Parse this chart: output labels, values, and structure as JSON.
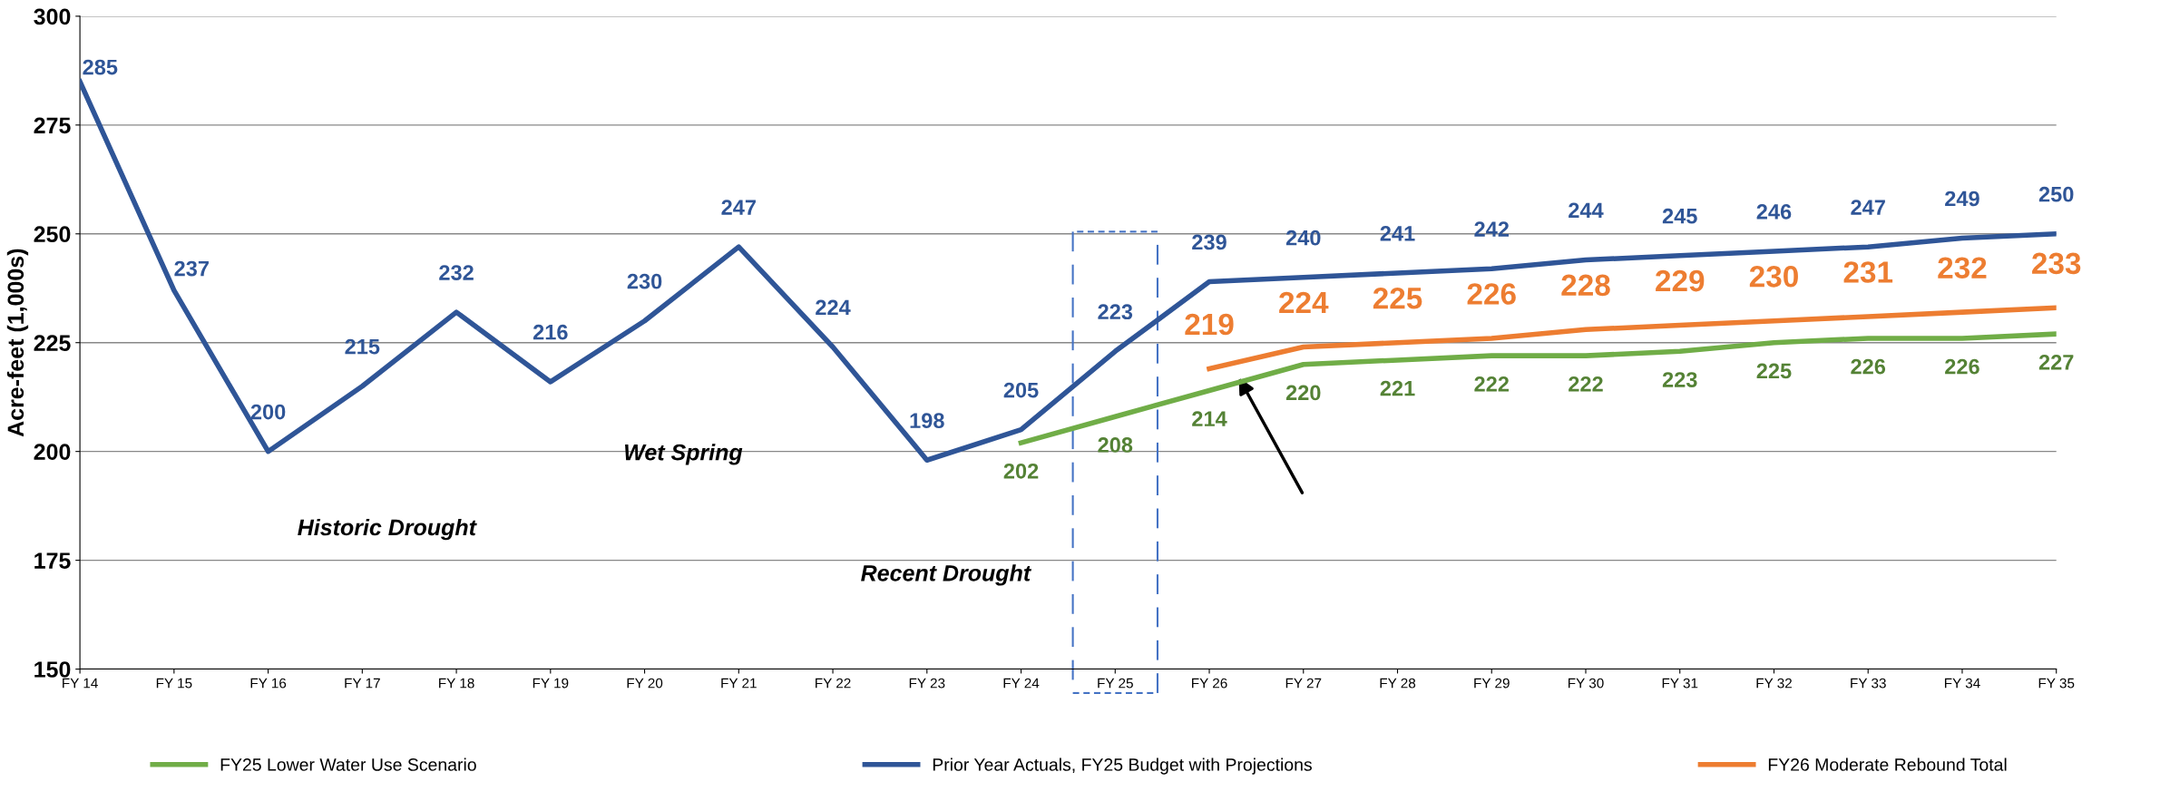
{
  "chart_data": {
    "type": "line",
    "categories": [
      "FY 14",
      "FY 15",
      "FY 16",
      "FY 17",
      "FY 18",
      "FY 19",
      "FY 20",
      "FY 21",
      "FY 22",
      "FY 23",
      "FY 24",
      "FY 25",
      "FY 26",
      "FY 27",
      "FY 28",
      "FY 29",
      "FY 30",
      "FY 31",
      "FY 32",
      "FY 33",
      "FY 34",
      "FY 35"
    ],
    "series": [
      {
        "name": "FY25 Lower Water Use Scenario",
        "color": "#70ad47",
        "values": [
          null,
          null,
          null,
          null,
          null,
          null,
          null,
          null,
          null,
          null,
          202,
          208,
          214,
          220,
          221,
          222,
          222,
          223,
          225,
          226,
          226,
          227
        ]
      },
      {
        "name": "Prior Year Actuals, FY25 Budget with Projections",
        "color": "#2f5597",
        "values": [
          285,
          237,
          200,
          215,
          232,
          216,
          230,
          247,
          224,
          198,
          205,
          223,
          239,
          240,
          241,
          242,
          244,
          245,
          246,
          247,
          249,
          250
        ]
      },
      {
        "name": "FY26 Moderate Rebound Total",
        "color": "#ed7d31",
        "values": [
          null,
          null,
          null,
          null,
          null,
          null,
          null,
          null,
          null,
          null,
          null,
          null,
          219,
          224,
          225,
          226,
          228,
          229,
          230,
          231,
          232,
          233
        ]
      }
    ],
    "ylabel": "Acre-feet (1,000s)",
    "ylim": [
      150,
      300
    ],
    "yticks": [
      150,
      175,
      200,
      225,
      250,
      275,
      300
    ],
    "annotations": [
      "Historic Drought",
      "Wet Spring",
      "Recent Drought"
    ],
    "data_labels": true,
    "grid": "y",
    "legend": "bottom",
    "marker": "none",
    "line_style": "solid"
  }
}
